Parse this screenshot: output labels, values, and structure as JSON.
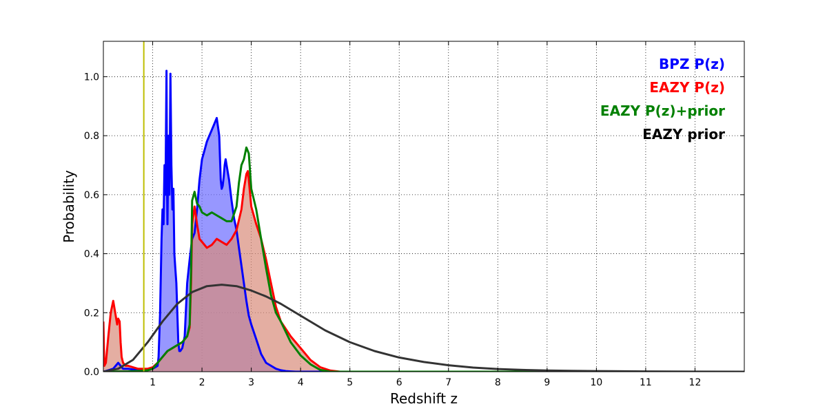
{
  "chart_data": {
    "type": "area",
    "xlabel": "Redshift z",
    "ylabel": "Probability",
    "xlim": [
      0,
      13
    ],
    "ylim": [
      0,
      1.12
    ],
    "grid": true,
    "legend_position": "top-right",
    "x_ticks": [
      1,
      2,
      3,
      4,
      5,
      6,
      7,
      8,
      9,
      10,
      11,
      12
    ],
    "x_tick_labels": [
      "1",
      "2",
      "3",
      "4",
      "5",
      "6",
      "7",
      "8",
      "9",
      "10",
      "11",
      "12"
    ],
    "y_ticks": [
      0.0,
      0.2,
      0.4,
      0.6,
      0.8,
      1.0
    ],
    "y_tick_labels": [
      "0.0",
      "0.2",
      "0.4",
      "0.6",
      "0.8",
      "1.0"
    ],
    "vertical_line": {
      "x": 0.82,
      "color": "#bfbf00"
    },
    "series": [
      {
        "name": "BPZ P(z)",
        "color": "#0000ff",
        "fill": true,
        "x": [
          0,
          0.1,
          0.2,
          0.25,
          0.3,
          0.35,
          0.4,
          0.5,
          0.7,
          0.85,
          1.0,
          1.1,
          1.12,
          1.15,
          1.18,
          1.2,
          1.22,
          1.24,
          1.26,
          1.28,
          1.29,
          1.3,
          1.32,
          1.34,
          1.36,
          1.38,
          1.4,
          1.42,
          1.44,
          1.46,
          1.48,
          1.5,
          1.52,
          1.54,
          1.56,
          1.58,
          1.6,
          1.65,
          1.7,
          1.75,
          1.8,
          1.85,
          1.9,
          1.95,
          2.0,
          2.05,
          2.1,
          2.15,
          2.2,
          2.25,
          2.3,
          2.35,
          2.38,
          2.4,
          2.42,
          2.44,
          2.46,
          2.48,
          2.5,
          2.55,
          2.6,
          2.65,
          2.7,
          2.75,
          2.8,
          2.85,
          2.9,
          2.95,
          3.0,
          3.1,
          3.2,
          3.3,
          3.4,
          3.5,
          3.6,
          3.7,
          3.8,
          3.9,
          4.0,
          4.2,
          4.5,
          13
        ],
        "y": [
          0,
          0.005,
          0.01,
          0.02,
          0.03,
          0.02,
          0.01,
          0.01,
          0.005,
          0.005,
          0.01,
          0.02,
          0.05,
          0.2,
          0.45,
          0.55,
          0.5,
          0.7,
          0.6,
          1.02,
          0.65,
          0.5,
          0.8,
          0.6,
          1.01,
          0.7,
          0.55,
          0.62,
          0.4,
          0.35,
          0.3,
          0.2,
          0.1,
          0.07,
          0.07,
          0.075,
          0.08,
          0.12,
          0.3,
          0.38,
          0.45,
          0.47,
          0.55,
          0.65,
          0.72,
          0.75,
          0.78,
          0.8,
          0.82,
          0.84,
          0.86,
          0.8,
          0.65,
          0.62,
          0.63,
          0.66,
          0.7,
          0.72,
          0.7,
          0.65,
          0.58,
          0.52,
          0.48,
          0.42,
          0.36,
          0.3,
          0.24,
          0.19,
          0.16,
          0.11,
          0.06,
          0.03,
          0.02,
          0.01,
          0.005,
          0.002,
          0.001,
          0,
          0,
          0,
          0,
          0
        ]
      },
      {
        "name": "EAZY P(z)",
        "color": "#ff0000",
        "fill": true,
        "x": [
          0,
          0.02,
          0.05,
          0.1,
          0.15,
          0.2,
          0.25,
          0.28,
          0.3,
          0.33,
          0.35,
          0.37,
          0.4,
          0.45,
          0.5,
          0.6,
          0.7,
          0.8,
          0.9,
          1.0,
          1.1,
          1.2,
          1.3,
          1.4,
          1.5,
          1.6,
          1.7,
          1.75,
          1.78,
          1.8,
          1.85,
          1.9,
          1.95,
          2.0,
          2.1,
          2.2,
          2.3,
          2.4,
          2.5,
          2.6,
          2.7,
          2.8,
          2.85,
          2.9,
          2.93,
          2.95,
          3.0,
          3.1,
          3.2,
          3.3,
          3.4,
          3.5,
          3.6,
          3.8,
          4.0,
          4.2,
          4.4,
          4.6,
          4.8,
          13
        ],
        "y": [
          0.17,
          0.02,
          0.03,
          0.12,
          0.2,
          0.24,
          0.19,
          0.16,
          0.18,
          0.17,
          0.1,
          0.05,
          0.03,
          0.02,
          0.02,
          0.015,
          0.01,
          0.01,
          0.01,
          0.015,
          0.03,
          0.05,
          0.07,
          0.08,
          0.09,
          0.1,
          0.12,
          0.15,
          0.3,
          0.5,
          0.56,
          0.5,
          0.45,
          0.44,
          0.42,
          0.43,
          0.45,
          0.44,
          0.43,
          0.45,
          0.48,
          0.55,
          0.62,
          0.67,
          0.68,
          0.65,
          0.56,
          0.5,
          0.45,
          0.38,
          0.3,
          0.22,
          0.17,
          0.12,
          0.08,
          0.04,
          0.015,
          0.004,
          0,
          0
        ]
      },
      {
        "name": "EAZY P(z)+prior",
        "color": "#008000",
        "fill": false,
        "x": [
          0,
          0.5,
          0.8,
          0.9,
          1.0,
          1.1,
          1.2,
          1.3,
          1.4,
          1.5,
          1.6,
          1.7,
          1.75,
          1.78,
          1.8,
          1.85,
          1.9,
          1.95,
          2.0,
          2.1,
          2.2,
          2.3,
          2.4,
          2.5,
          2.6,
          2.7,
          2.75,
          2.8,
          2.85,
          2.9,
          2.95,
          3.0,
          3.1,
          3.2,
          3.3,
          3.4,
          3.5,
          3.6,
          3.8,
          4.0,
          4.2,
          4.4,
          4.6,
          13
        ],
        "y": [
          0,
          0.001,
          0.003,
          0.005,
          0.01,
          0.03,
          0.05,
          0.07,
          0.08,
          0.09,
          0.1,
          0.12,
          0.16,
          0.35,
          0.58,
          0.61,
          0.57,
          0.56,
          0.54,
          0.53,
          0.54,
          0.53,
          0.52,
          0.51,
          0.51,
          0.56,
          0.64,
          0.7,
          0.72,
          0.76,
          0.74,
          0.62,
          0.55,
          0.45,
          0.35,
          0.26,
          0.2,
          0.17,
          0.1,
          0.055,
          0.025,
          0.006,
          0,
          0
        ]
      },
      {
        "name": "EAZY prior",
        "color": "#333333",
        "fill": false,
        "x": [
          0,
          0.3,
          0.6,
          0.9,
          1.2,
          1.5,
          1.8,
          2.1,
          2.4,
          2.7,
          3.0,
          3.3,
          3.6,
          4.0,
          4.5,
          5.0,
          5.5,
          6.0,
          6.5,
          7.0,
          7.5,
          8.0,
          8.5,
          9.0,
          9.5,
          10.0,
          11.0,
          12.0,
          13.0
        ],
        "y": [
          0,
          0.01,
          0.04,
          0.1,
          0.17,
          0.23,
          0.27,
          0.29,
          0.295,
          0.29,
          0.275,
          0.255,
          0.23,
          0.19,
          0.14,
          0.1,
          0.07,
          0.048,
          0.033,
          0.022,
          0.014,
          0.009,
          0.006,
          0.004,
          0.003,
          0.002,
          0.001,
          0.0003,
          0
        ]
      }
    ],
    "legend": [
      {
        "label": "BPZ P(z)",
        "color": "#0000ff"
      },
      {
        "label": "EAZY P(z)",
        "color": "#ff0000"
      },
      {
        "label": "EAZY P(z)+prior",
        "color": "#008000"
      },
      {
        "label": "EAZY prior",
        "color": "#000000"
      }
    ],
    "fill_colors": {
      "BPZ P(z)": "#6b6bff",
      "EAZY P(z)": "#d98c7a"
    }
  }
}
